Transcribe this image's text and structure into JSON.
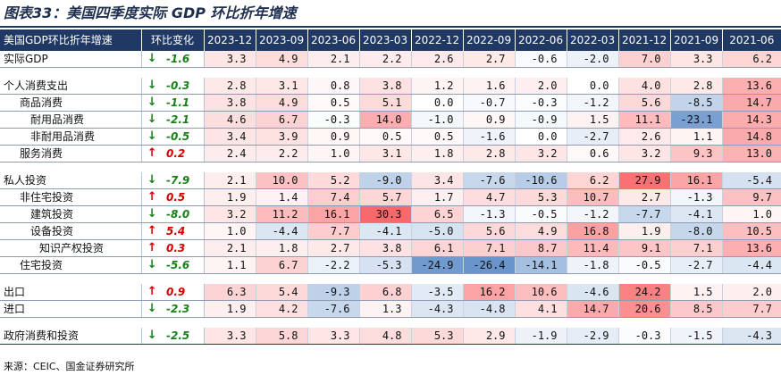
{
  "title": "图表33：美国四季度实际 GDP 环比折年增速",
  "source": "来源：CEIC、国金证券研究所",
  "colors": {
    "header_bg": "#1f3864",
    "up_arrow": "#d40000",
    "down_arrow": "#1a7f1a",
    "positive_heat": "#f8696b",
    "negative_heat": "#5a8ac6"
  },
  "header": {
    "label": "美国GDP环比折年增速",
    "change": "环比变化",
    "periods": [
      "2023-12",
      "2023-09",
      "2023-06",
      "2023-03",
      "2022-12",
      "2022-09",
      "2022-06",
      "2022-03",
      "2021-12",
      "2021-09",
      "2021-06"
    ]
  },
  "rows": [
    {
      "type": "data",
      "label": "实际GDP",
      "indent": 0,
      "arrow": "↓",
      "direction": "down",
      "change": "-1.6",
      "values": [
        "3.3",
        "4.9",
        "2.1",
        "2.2",
        "2.6",
        "2.7",
        "-0.6",
        "-2.0",
        "7.0",
        "3.3",
        "6.2"
      ]
    },
    {
      "type": "spacer"
    },
    {
      "type": "data",
      "label": "个人消费支出",
      "indent": 0,
      "arrow": "↓",
      "direction": "down",
      "change": "-0.3",
      "values": [
        "2.8",
        "3.1",
        "0.8",
        "3.8",
        "1.2",
        "1.6",
        "2.0",
        "0.0",
        "4.0",
        "2.8",
        "13.6"
      ]
    },
    {
      "type": "data",
      "label": "商品消费",
      "indent": 1,
      "arrow": "↓",
      "direction": "down",
      "change": "-1.1",
      "values": [
        "3.8",
        "4.9",
        "0.5",
        "5.1",
        "0.0",
        "-0.7",
        "-0.3",
        "-1.2",
        "5.6",
        "-8.5",
        "14.7"
      ]
    },
    {
      "type": "data",
      "label": "耐用品消费",
      "indent": 2,
      "arrow": "↓",
      "direction": "down",
      "change": "-2.1",
      "values": [
        "4.6",
        "6.7",
        "-0.3",
        "14.0",
        "-1.0",
        "0.9",
        "-0.9",
        "1.5",
        "11.1",
        "-23.1",
        "14.3"
      ]
    },
    {
      "type": "data",
      "label": "非耐用品消费",
      "indent": 2,
      "arrow": "↓",
      "direction": "down",
      "change": "-0.5",
      "values": [
        "3.4",
        "3.9",
        "0.9",
        "0.5",
        "0.5",
        "-1.6",
        "0.0",
        "-2.7",
        "2.6",
        "1.1",
        "14.8"
      ]
    },
    {
      "type": "data",
      "label": "服务消费",
      "indent": 1,
      "arrow": "↑",
      "direction": "up",
      "change": "0.2",
      "values": [
        "2.4",
        "2.2",
        "1.0",
        "3.1",
        "1.8",
        "2.8",
        "3.2",
        "0.6",
        "3.2",
        "9.3",
        "13.0"
      ]
    },
    {
      "type": "spacer"
    },
    {
      "type": "data",
      "label": "私人投资",
      "indent": 0,
      "arrow": "↓",
      "direction": "down",
      "change": "-7.9",
      "values": [
        "2.1",
        "10.0",
        "5.2",
        "-9.0",
        "3.4",
        "-7.6",
        "-10.6",
        "6.2",
        "27.9",
        "16.1",
        "-5.4"
      ]
    },
    {
      "type": "data",
      "label": "非住宅投资",
      "indent": 1,
      "arrow": "↑",
      "direction": "up",
      "change": "0.5",
      "values": [
        "1.9",
        "1.4",
        "7.4",
        "5.7",
        "1.7",
        "4.7",
        "5.3",
        "10.7",
        "2.7",
        "-1.3",
        "9.7"
      ]
    },
    {
      "type": "data",
      "label": "建筑投资",
      "indent": 2,
      "arrow": "↓",
      "direction": "down",
      "change": "-8.0",
      "values": [
        "3.2",
        "11.2",
        "16.1",
        "30.3",
        "6.5",
        "-1.3",
        "-0.5",
        "-1.2",
        "-7.7",
        "-4.1",
        "1.0"
      ]
    },
    {
      "type": "data",
      "label": "设备投资",
      "indent": 2,
      "arrow": "↑",
      "direction": "up",
      "change": "5.4",
      "values": [
        "1.0",
        "-4.4",
        "7.7",
        "-4.1",
        "-5.0",
        "5.6",
        "4.9",
        "16.8",
        "1.9",
        "-8.0",
        "10.5"
      ]
    },
    {
      "type": "data",
      "label": "知识产权投资",
      "indent": 3,
      "arrow": "↑",
      "direction": "up",
      "change": "0.3",
      "values": [
        "2.1",
        "1.8",
        "2.7",
        "3.8",
        "6.1",
        "7.1",
        "8.7",
        "11.4",
        "9.1",
        "7.1",
        "13.6"
      ]
    },
    {
      "type": "data",
      "label": "住宅投资",
      "indent": 1,
      "arrow": "↓",
      "direction": "down",
      "change": "-5.6",
      "values": [
        "1.1",
        "6.7",
        "-2.2",
        "-5.3",
        "-24.9",
        "-26.4",
        "-14.1",
        "-1.8",
        "-0.5",
        "-2.7",
        "-4.4"
      ]
    },
    {
      "type": "spacer"
    },
    {
      "type": "data",
      "label": "出口",
      "indent": 0,
      "arrow": "↑",
      "direction": "up",
      "change": "0.9",
      "values": [
        "6.3",
        "5.4",
        "-9.3",
        "6.8",
        "-3.5",
        "16.2",
        "10.6",
        "-4.6",
        "24.2",
        "1.5",
        "2.0"
      ]
    },
    {
      "type": "data",
      "label": "进口",
      "indent": 0,
      "arrow": "↓",
      "direction": "down",
      "change": "-2.3",
      "values": [
        "1.9",
        "4.2",
        "-7.6",
        "1.3",
        "-4.3",
        "-4.8",
        "4.1",
        "14.7",
        "20.6",
        "8.5",
        "7.7"
      ]
    },
    {
      "type": "spacer"
    },
    {
      "type": "data",
      "label": "政府消费和投资",
      "indent": 0,
      "arrow": "↓",
      "direction": "down",
      "change": "-2.5",
      "values": [
        "3.3",
        "5.8",
        "3.3",
        "4.8",
        "5.3",
        "2.9",
        "-1.9",
        "-2.9",
        "-0.3",
        "-1.5",
        "-4.3"
      ]
    }
  ]
}
